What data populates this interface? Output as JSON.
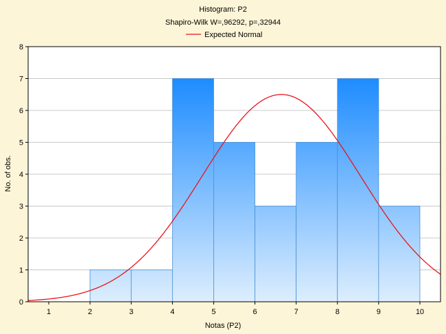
{
  "chart_data": {
    "type": "bar",
    "title": "Histogram: P2",
    "subtitle": "Shapiro-Wilk W=,96292, p=,32944",
    "xlabel": "Notas (P2)",
    "ylabel": "No. of obs.",
    "xlim": [
      0.5,
      10.5
    ],
    "ylim": [
      0,
      8
    ],
    "x_ticks": [
      "1",
      "2",
      "3",
      "4",
      "5",
      "6",
      "7",
      "8",
      "9",
      "10"
    ],
    "y_ticks": [
      "0",
      "1",
      "2",
      "3",
      "4",
      "5",
      "6",
      "7",
      "8"
    ],
    "bins": [
      {
        "from": 2,
        "to": 3,
        "count": 1
      },
      {
        "from": 3,
        "to": 4,
        "count": 1
      },
      {
        "from": 4,
        "to": 5,
        "count": 7
      },
      {
        "from": 5,
        "to": 6,
        "count": 5
      },
      {
        "from": 6,
        "to": 7,
        "count": 3
      },
      {
        "from": 7,
        "to": 8,
        "count": 5
      },
      {
        "from": 8,
        "to": 9,
        "count": 7
      },
      {
        "from": 9,
        "to": 10,
        "count": 3
      }
    ],
    "curve": {
      "name": "Expected Normal",
      "color": "#e8141c",
      "mean": 6.64,
      "sd": 1.92,
      "peak": 6.5
    },
    "grid": true,
    "legend": "top-center",
    "bar_color_top": "#1e8cff",
    "bar_color_bottom": "#ddeefe",
    "background": "#fdf5d8"
  }
}
